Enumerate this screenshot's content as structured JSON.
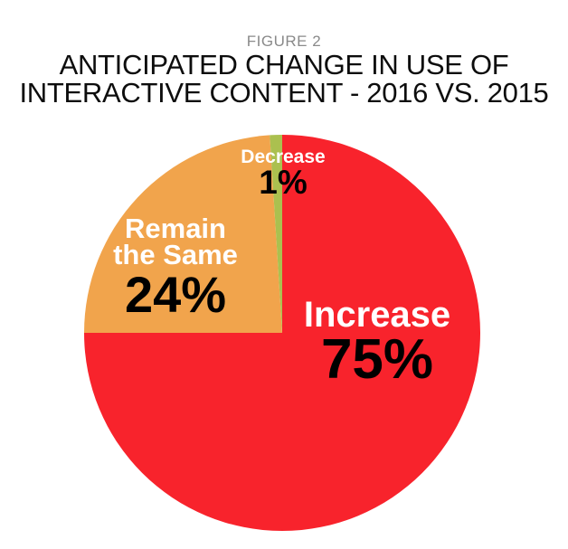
{
  "figure": {
    "label": "FIGURE 2"
  },
  "title": {
    "line1": "ANTICIPATED CHANGE IN USE OF",
    "line2": "INTERACTIVE CONTENT - 2016 VS. 2015"
  },
  "chart_data": {
    "type": "pie",
    "title": "Anticipated change in use of interactive content - 2016 vs. 2015",
    "start_angle_deg": 0,
    "direction": "clockwise",
    "legend_position": "labels-on-slices",
    "slices": [
      {
        "label": "Increase",
        "value": 75,
        "pct": "75%",
        "color": "#F8232C",
        "label_color": "#FFFFFF",
        "value_color": "#000000"
      },
      {
        "label": "Remain the Same",
        "label_lines": [
          "Remain",
          "the Same"
        ],
        "value": 24,
        "pct": "24%",
        "color": "#F1A44C",
        "label_color": "#FFFFFF",
        "value_color": "#000000"
      },
      {
        "label": "Decrease",
        "value": 1,
        "pct": "1%",
        "color": "#ABC04F",
        "label_color": "#FFFFFF",
        "value_color": "#000000"
      }
    ]
  }
}
